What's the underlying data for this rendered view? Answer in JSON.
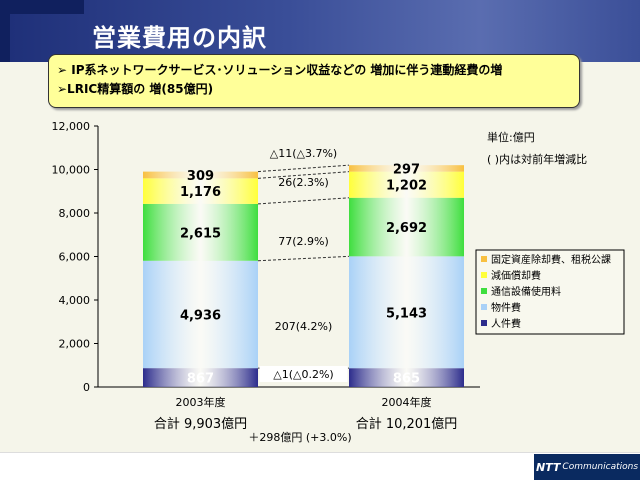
{
  "title": "営業費用の内訳",
  "notes": [
    "➢ IP系ネットワークサービス･ソリューション収益などの 増加に伴う連動経費の増",
    "➢LRIC精算額の 増(85億円)"
  ],
  "logo": {
    "brand": "NTT",
    "text": "Communications"
  },
  "chart_data": {
    "type": "bar",
    "stacked": true,
    "categories": [
      "2003年度",
      "2004年度"
    ],
    "totals": [
      "合計 9,903億円",
      "合計 10,201億円"
    ],
    "total_change": "＋298億円 (+3.0%)",
    "unit": "単位:億円",
    "unit_note": "( )内は対前年増減比",
    "ylim": [
      0,
      12000
    ],
    "yticks": [
      "0",
      "2,000",
      "4,000",
      "6,000",
      "8,000",
      "10,000",
      "12,000"
    ],
    "legend_position": "right",
    "series": [
      {
        "name": "人件費",
        "values": [
          867,
          865
        ],
        "labels": [
          "867",
          "865"
        ],
        "color": "#2c2c8c",
        "change": "△1(△0.2%)"
      },
      {
        "name": "物件費",
        "values": [
          4936,
          5143
        ],
        "labels": [
          "4,936",
          "5,143"
        ],
        "color": "#a9d1f7",
        "change": "207(4.2%)"
      },
      {
        "name": "通信設備使用料",
        "values": [
          2615,
          2692
        ],
        "labels": [
          "2,615",
          "2,692"
        ],
        "color": "#3ede3e",
        "change": "77(2.9%)"
      },
      {
        "name": "減価償却費",
        "values": [
          1176,
          1202
        ],
        "labels": [
          "1,176",
          "1,202"
        ],
        "color": "#ffff3a",
        "change": "26(2.3%)"
      },
      {
        "name": "固定資産除却費、租税公課",
        "values": [
          309,
          297
        ],
        "labels": [
          "309",
          "297"
        ],
        "color": "#f8c040",
        "change": "△11(△3.7%)"
      }
    ]
  }
}
